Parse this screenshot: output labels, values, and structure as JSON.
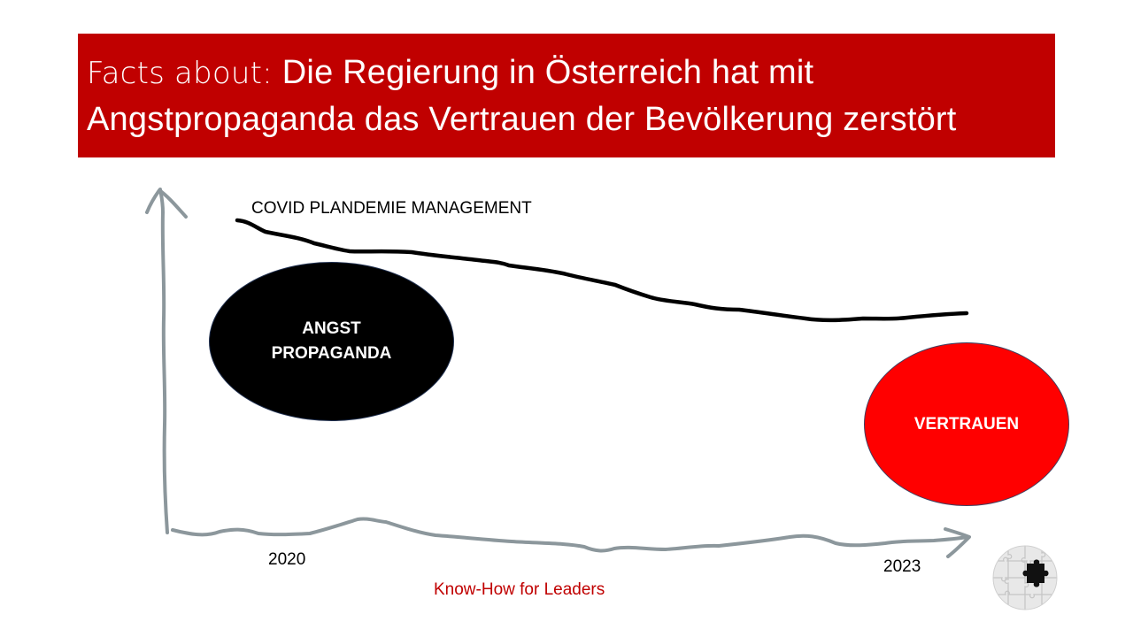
{
  "title": {
    "prefix": "Facts about: ",
    "line1": "Die Regierung in Österreich hat mit",
    "line2": "Angstpropaganda das Vertrauen der Bevölkerung zerstört"
  },
  "diagram": {
    "curve_label": "COVID PLANDEMIE MANAGEMENT",
    "bubble_left": {
      "line1": "ANGST",
      "line2": "PROPAGANDA"
    },
    "bubble_right": "VERTRAUEN",
    "x_start_label": "2020",
    "x_end_label": "2023"
  },
  "footer": "Know-How for Leaders",
  "colors": {
    "title_bar": "#c00000",
    "axis": "#8c979c",
    "curve": "#000000",
    "angst_bubble": "#000000",
    "vertrauen_bubble": "#ff0000",
    "footer_text": "#c00000"
  },
  "icons": {
    "logo": "puzzle-icon"
  }
}
